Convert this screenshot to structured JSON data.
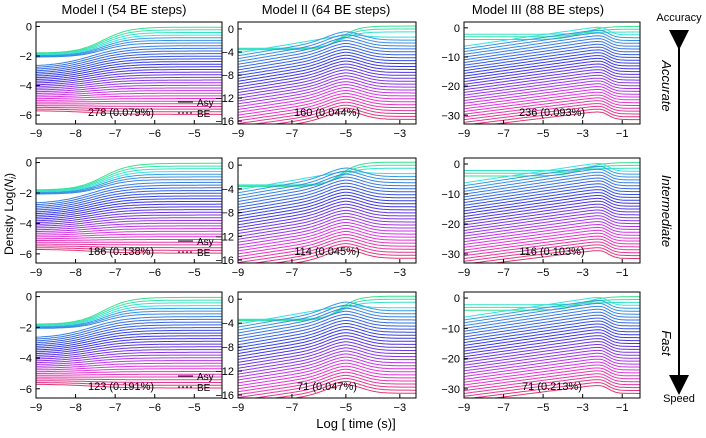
{
  "figure": {
    "ylabel_prefix": "Density Log(",
    "ylabel_var": "N",
    "ylabel_sub": "i",
    "ylabel_suffix": ")",
    "xlabel": "Log [ time (s)]",
    "arrow_top": "Accuracy",
    "arrow_bottom": "Speed",
    "legend": [
      "Asy",
      "BE"
    ],
    "col_titles": [
      "Model I (54 BE steps)",
      "Model II (64 BE steps)",
      "Model III (88 BE steps)"
    ],
    "row_labels": [
      "Accurate",
      "Intermediate",
      "Fast"
    ]
  },
  "chart_data": [
    {
      "type": "line",
      "row": 0,
      "col": 0,
      "title": "Model I (54 BE steps)",
      "row_label": "Accurate",
      "annotation": "278 (0.079%)",
      "xlim": [
        -9,
        -4.3
      ],
      "ylim": [
        -6.6,
        0.3
      ],
      "xticks": [
        -9,
        -8,
        -7,
        -6,
        -5
      ],
      "yticks": [
        0,
        -2,
        -4,
        -6
      ],
      "model": 1,
      "n_curves": 34,
      "legend": [
        "Asy",
        "BE"
      ]
    },
    {
      "type": "line",
      "row": 0,
      "col": 1,
      "title": "Model II (64 BE steps)",
      "row_label": "Accurate",
      "annotation": "160 (0.044%)",
      "xlim": [
        -9,
        -2.4
      ],
      "ylim": [
        -16.5,
        1.2
      ],
      "xticks": [
        -9,
        -7,
        -5,
        -3
      ],
      "yticks": [
        0,
        -4,
        -8,
        -12,
        -16
      ],
      "model": 2,
      "n_curves": 32
    },
    {
      "type": "line",
      "row": 0,
      "col": 2,
      "title": "Model III (88 BE steps)",
      "row_label": "Accurate",
      "annotation": "236 (0.093%)",
      "xlim": [
        -9,
        -0.1
      ],
      "ylim": [
        -33,
        2
      ],
      "xticks": [
        -9,
        -7,
        -5,
        -3,
        -1
      ],
      "yticks": [
        0,
        -10,
        -20,
        -30
      ],
      "model": 3,
      "n_curves": 34
    },
    {
      "type": "line",
      "row": 1,
      "col": 0,
      "title": "",
      "row_label": "Intermediate",
      "annotation": "186 (0.138%)",
      "xlim": [
        -9,
        -4.3
      ],
      "ylim": [
        -6.6,
        0.3
      ],
      "xticks": [
        -9,
        -8,
        -7,
        -6,
        -5
      ],
      "yticks": [
        0,
        -2,
        -4,
        -6
      ],
      "model": 1,
      "n_curves": 34,
      "legend": [
        "Asy",
        "BE"
      ]
    },
    {
      "type": "line",
      "row": 1,
      "col": 1,
      "title": "",
      "row_label": "Intermediate",
      "annotation": "114 (0.045%)",
      "xlim": [
        -9,
        -2.4
      ],
      "ylim": [
        -16.5,
        1.2
      ],
      "xticks": [
        -9,
        -7,
        -5,
        -3
      ],
      "yticks": [
        0,
        -4,
        -8,
        -12,
        -16
      ],
      "model": 2,
      "n_curves": 32
    },
    {
      "type": "line",
      "row": 1,
      "col": 2,
      "title": "",
      "row_label": "Intermediate",
      "annotation": "116 (0.103%)",
      "xlim": [
        -9,
        -0.1
      ],
      "ylim": [
        -33,
        2
      ],
      "xticks": [
        -9,
        -7,
        -5,
        -3,
        -1
      ],
      "yticks": [
        0,
        -10,
        -20,
        -30
      ],
      "model": 3,
      "n_curves": 34
    },
    {
      "type": "line",
      "row": 2,
      "col": 0,
      "title": "",
      "row_label": "Fast",
      "annotation": "123 (0.191%)",
      "xlim": [
        -9,
        -4.3
      ],
      "ylim": [
        -6.6,
        0.3
      ],
      "xticks": [
        -9,
        -8,
        -7,
        -6,
        -5
      ],
      "yticks": [
        0,
        -2,
        -4,
        -6
      ],
      "model": 1,
      "n_curves": 34,
      "legend": [
        "Asy",
        "BE"
      ]
    },
    {
      "type": "line",
      "row": 2,
      "col": 1,
      "title": "",
      "row_label": "Fast",
      "annotation": "71 (0.047%)",
      "xlim": [
        -9,
        -2.4
      ],
      "ylim": [
        -16.5,
        1.2
      ],
      "xticks": [
        -9,
        -7,
        -5,
        -3
      ],
      "yticks": [
        0,
        -4,
        -8,
        -12,
        -16
      ],
      "model": 2,
      "n_curves": 32
    },
    {
      "type": "line",
      "row": 2,
      "col": 2,
      "title": "",
      "row_label": "Fast",
      "annotation": "71 (0.213%)",
      "xlim": [
        -9,
        -0.1
      ],
      "ylim": [
        -33,
        2
      ],
      "xticks": [
        -9,
        -7,
        -5,
        -3,
        -1
      ],
      "yticks": [
        0,
        -10,
        -20,
        -30
      ],
      "model": 3,
      "n_curves": 34
    }
  ]
}
